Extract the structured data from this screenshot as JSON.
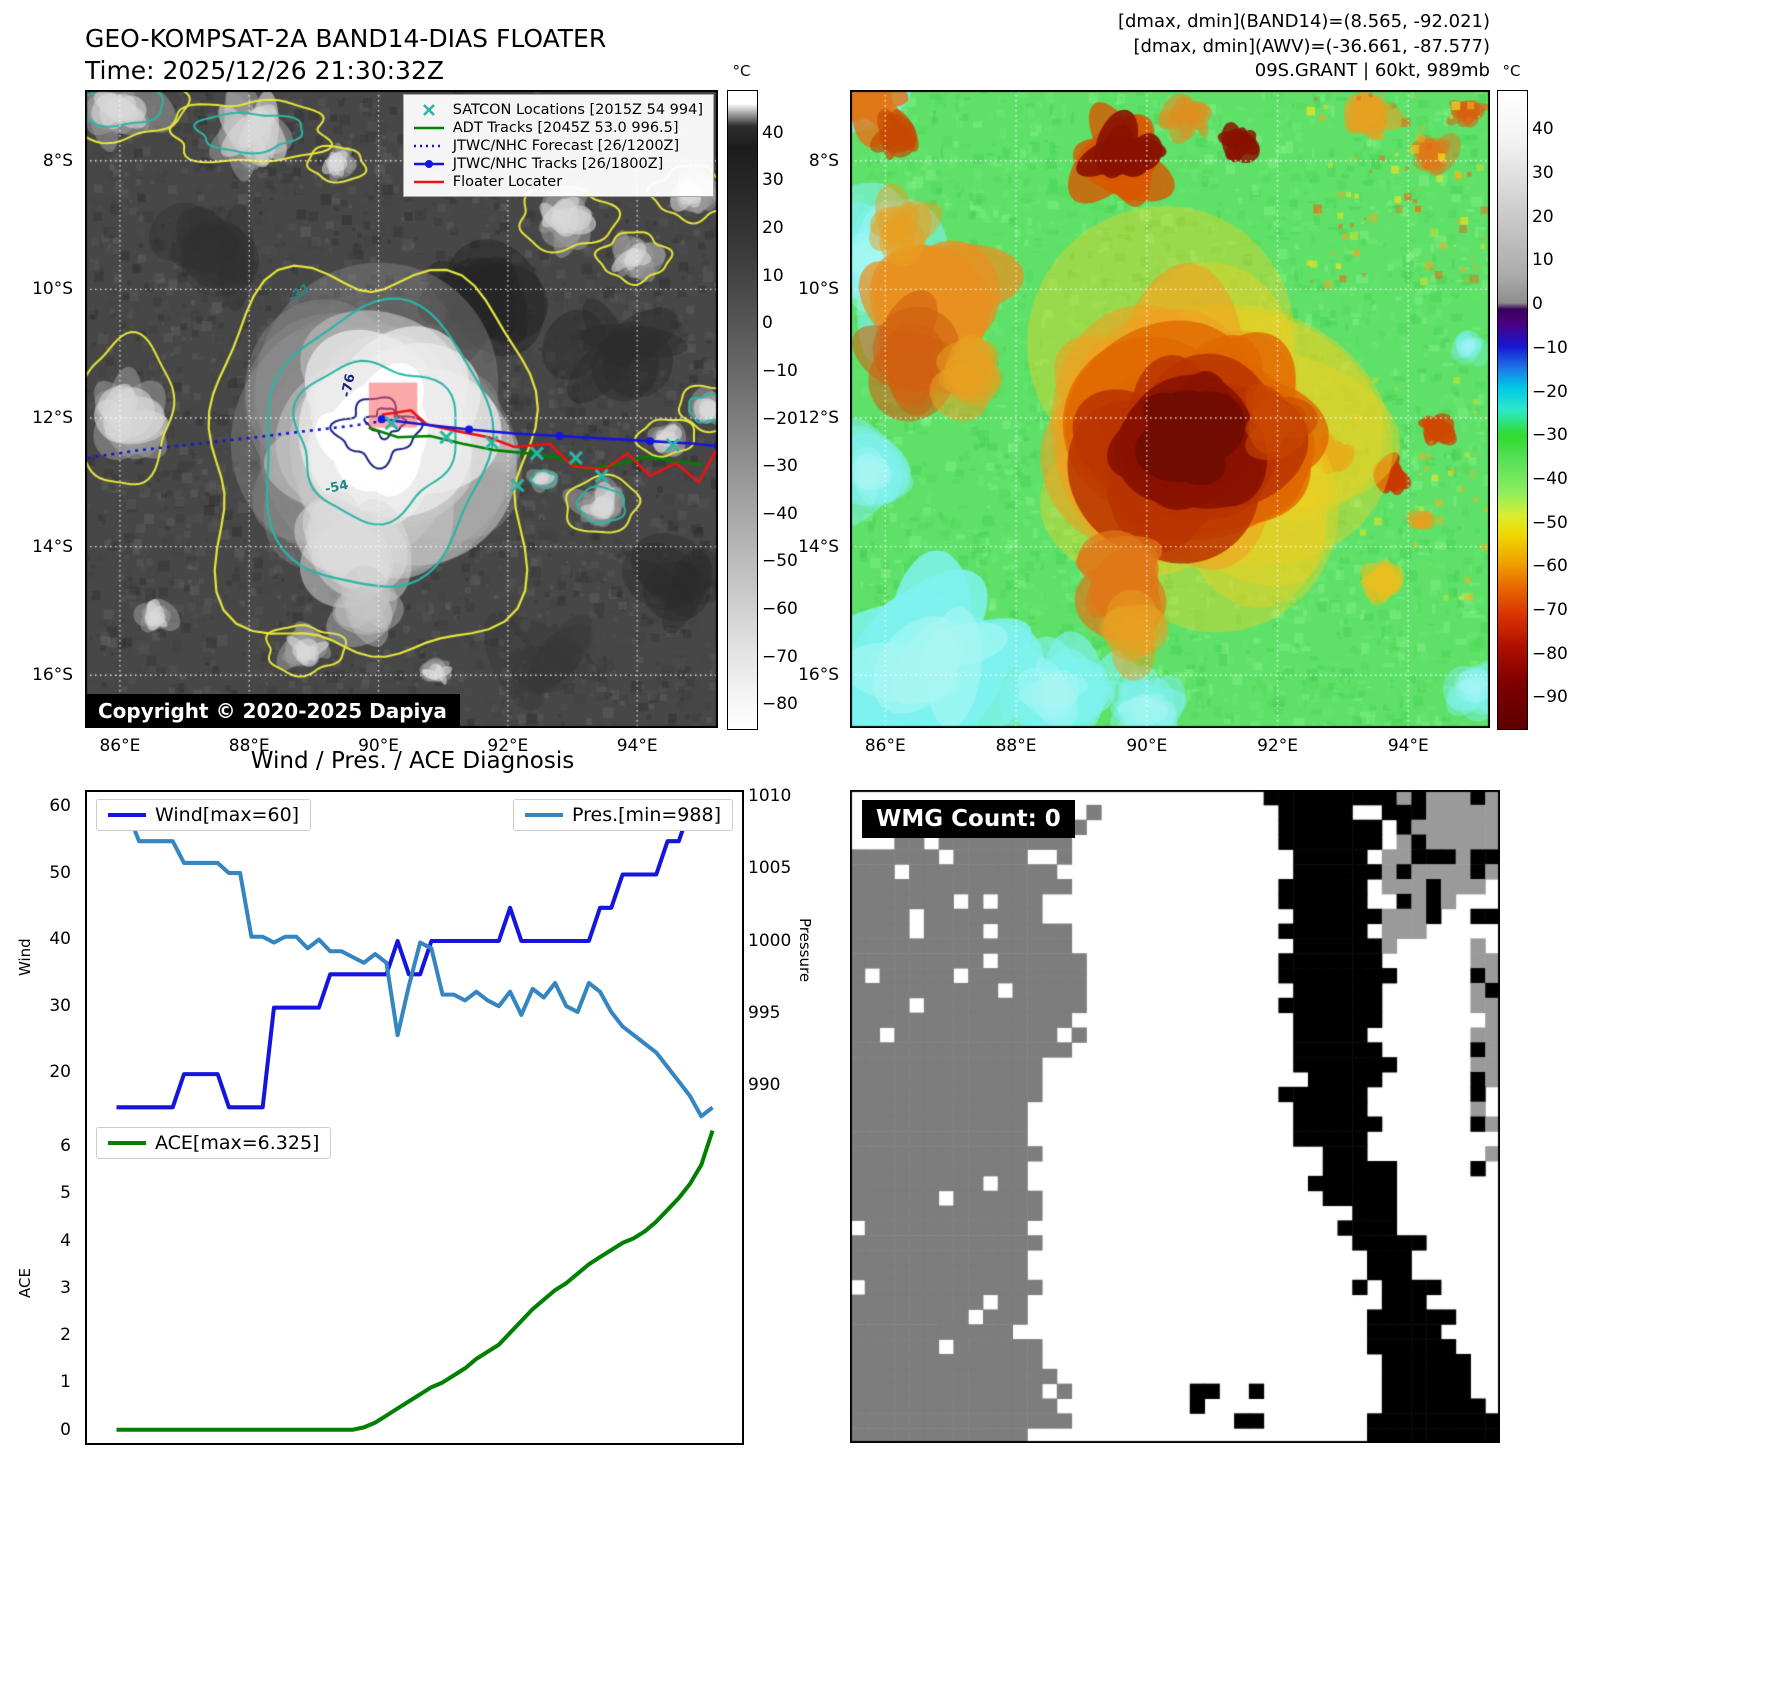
{
  "panelA": {
    "title_line1": "GEO-KOMPSAT-2A BAND14-DIAS FLOATER",
    "title_line2": "Time: 2025/12/26 21:30:32Z",
    "copyright": "Copyright © 2020-2025 Dapiya",
    "colorbar": {
      "unit": "°C",
      "ticks": [
        40,
        30,
        20,
        10,
        0,
        -10,
        -20,
        -30,
        -40,
        -50,
        -60,
        -70,
        -80
      ]
    },
    "x_ticks": [
      "86°E",
      "88°E",
      "90°E",
      "92°E",
      "94°E"
    ],
    "y_ticks": [
      "8°S",
      "10°S",
      "12°S",
      "14°S",
      "16°S"
    ],
    "legend": [
      {
        "label": "SATCON Locations [2015Z 54 994]",
        "marker": "x",
        "color": "#2ab5a5"
      },
      {
        "label": "ADT Tracks [2045Z 53.0 996.5]",
        "marker": "line",
        "color": "#008000"
      },
      {
        "label": "JTWC/NHC Forecast [26/1200Z]",
        "marker": "dotted",
        "color": "#1515dd"
      },
      {
        "label": "JTWC/NHC Tracks [26/1800Z]",
        "marker": "line-dot",
        "color": "#1515dd"
      },
      {
        "label": "Floater Locater",
        "marker": "line",
        "color": "#ee1111"
      }
    ],
    "contour_labels": [
      {
        "text": "-76"
      },
      {
        "text": "-54"
      },
      {
        "text": "-31"
      }
    ]
  },
  "panelB": {
    "header_lines": [
      "[dmax, dmin](BAND14)=(8.565, -92.021)",
      "[dmax, dmin](AWV)=(-36.661, -87.577)",
      "09S.GRANT | 60kt, 989mb"
    ],
    "colorbar": {
      "unit": "°C",
      "ticks": [
        40,
        30,
        20,
        10,
        0,
        -10,
        -20,
        -30,
        -40,
        -50,
        -60,
        -70,
        -80,
        -90
      ]
    },
    "x_ticks": [
      "86°E",
      "88°E",
      "90°E",
      "92°E",
      "94°E"
    ],
    "y_ticks": [
      "8°S",
      "10°S",
      "12°S",
      "14°S",
      "16°S"
    ]
  },
  "panelD": {
    "label": "WMG Count: 0"
  },
  "chart_data": [
    {
      "id": "wind_pressure",
      "type": "line",
      "title": "Wind / Pres. / ACE Diagnosis",
      "left_axis": {
        "label": "Wind",
        "ticks": [
          60,
          50,
          40,
          30,
          20
        ],
        "lim": [
          12.8,
          62.4
        ]
      },
      "right_axis": {
        "label": "Pressure",
        "ticks": [
          1010,
          1005,
          1000,
          995,
          990
        ],
        "lim": [
          987.6,
          1010.4
        ]
      },
      "legend_position": {
        "wind": "upper-left",
        "pressure": "upper-right"
      },
      "grid": false,
      "series": [
        {
          "name": "Wind[max=60]",
          "axis": "left",
          "color": "#1515dd",
          "values": [
            15,
            15,
            15,
            15,
            15,
            15,
            20,
            20,
            20,
            20,
            15,
            15,
            15,
            15,
            30,
            30,
            30,
            30,
            30,
            35,
            35,
            35,
            35,
            35,
            35,
            40,
            35,
            35,
            40,
            40,
            40,
            40,
            40,
            40,
            40,
            45,
            40,
            40,
            40,
            40,
            40,
            40,
            40,
            45,
            45,
            50,
            50,
            50,
            50,
            55,
            55,
            60,
            60,
            60
          ]
        },
        {
          "name": "Pres.[min=988]",
          "axis": "right",
          "color": "#3585c0",
          "values": [
            1009,
            1009,
            1007,
            1007,
            1007,
            1007,
            1005.5,
            1005.5,
            1005.5,
            1005.5,
            1004.8,
            1004.8,
            1000.4,
            1000.4,
            1000,
            1000.4,
            1000.4,
            999.6,
            1000.2,
            999.4,
            999.4,
            999,
            998.6,
            999.2,
            998.6,
            993.6,
            997,
            1000,
            999.6,
            996.4,
            996.4,
            996,
            996.6,
            996,
            995.6,
            996.6,
            995,
            996.8,
            996.2,
            997.2,
            995.6,
            995.2,
            997.2,
            996.6,
            995.2,
            994.2,
            993.6,
            993,
            992.4,
            991.4,
            990.4,
            989.4,
            988,
            988.6
          ]
        }
      ]
    },
    {
      "id": "ace",
      "type": "line",
      "left_axis": {
        "label": "ACE",
        "ticks": [
          6,
          5,
          4,
          3,
          2,
          1,
          0
        ],
        "lim": [
          -0.28,
          6.55
        ]
      },
      "legend_position": {
        "ace": "upper-left"
      },
      "grid": false,
      "series": [
        {
          "name": "ACE[max=6.325]",
          "axis": "left",
          "color": "#008000",
          "values": [
            0,
            0,
            0,
            0,
            0,
            0,
            0,
            0,
            0,
            0,
            0,
            0,
            0,
            0,
            0,
            0,
            0,
            0,
            0,
            0,
            0,
            0,
            0.05,
            0.15,
            0.3,
            0.45,
            0.6,
            0.75,
            0.9,
            1.0,
            1.15,
            1.3,
            1.5,
            1.65,
            1.8,
            2.05,
            2.3,
            2.55,
            2.75,
            2.95,
            3.1,
            3.3,
            3.5,
            3.65,
            3.8,
            3.95,
            4.05,
            4.2,
            4.4,
            4.65,
            4.9,
            5.2,
            5.6,
            6.325
          ]
        }
      ]
    }
  ]
}
